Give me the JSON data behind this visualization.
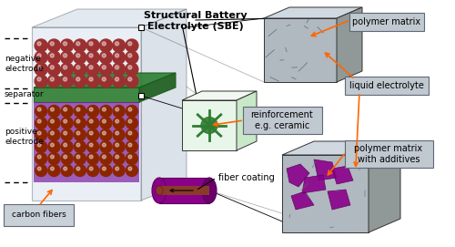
{
  "title": "Structural Battery Electrolyte (SBE)",
  "bg_color": "#ffffff",
  "labels": {
    "carbon_fibers": "carbon fibers",
    "negative_electrode": "negative\nelectrode",
    "separator": "separator",
    "positive_electrode": "positive\nelectrode",
    "fiber_coating": "fiber coating",
    "reinforcement": "reinforcement\ne.g. ceramic",
    "polymer_matrix": "polymer matrix",
    "liquid_electrolyte": "liquid electrolyte",
    "polymer_matrix_additives": "polymer matrix\nwith additives",
    "sbe_title": "Structural Battery\nElectrolyte (SBE)"
  },
  "colors": {
    "dark_red": "#8B2500",
    "red_fiber": "#A0522D",
    "brown_red": "#9B3A3A",
    "purple": "#8B008B",
    "green_sep": "#2E7D32",
    "light_blue_box": "#C8D8E8",
    "gray_box": "#B0B8C0",
    "light_gray": "#D0D8E0",
    "dark_gray": "#808890",
    "label_box": "#C0C8D0",
    "orange_arrow": "#FF6600",
    "black_arrow": "#000000",
    "white": "#FFFFFF",
    "green_reinf": "#228B22",
    "mid_gray": "#909898"
  },
  "figsize": [
    5.0,
    2.71
  ],
  "dpi": 100
}
